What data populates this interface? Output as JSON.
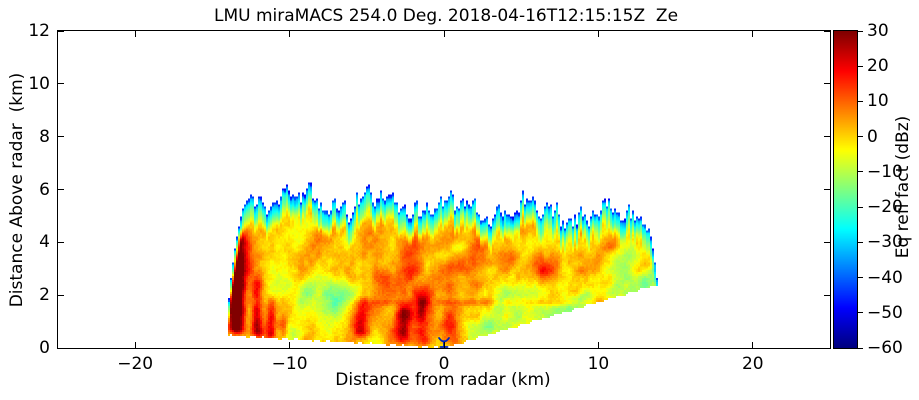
{
  "figure": {
    "title": "LMU miraMACS 254.0 Deg. 2018-04-16T12:15:15Z  Ze",
    "xlabel": "Distance from radar (km)",
    "ylabel": "Distance Above radar  (km)",
    "background_color": "#ffffff",
    "frame_color": "#000000"
  },
  "axes": {
    "x_ticks": [
      {
        "value": -20,
        "label": "−20"
      },
      {
        "value": -10,
        "label": "−10"
      },
      {
        "value": 0,
        "label": "0"
      },
      {
        "value": 10,
        "label": "10"
      },
      {
        "value": 20,
        "label": "20"
      }
    ],
    "y_ticks": [
      {
        "value": 0,
        "label": "0"
      },
      {
        "value": 2,
        "label": "2"
      },
      {
        "value": 4,
        "label": "4"
      },
      {
        "value": 6,
        "label": "6"
      },
      {
        "value": 8,
        "label": "8"
      },
      {
        "value": 10,
        "label": "10"
      },
      {
        "value": 12,
        "label": "12"
      }
    ]
  },
  "colorbar": {
    "label": "Eq refl fact (dBz)",
    "vmin": -60,
    "vmax": 30,
    "colormap": "jet",
    "ticks": [
      {
        "value": 30,
        "label": "30"
      },
      {
        "value": 20,
        "label": "20"
      },
      {
        "value": 10,
        "label": "10"
      },
      {
        "value": 0,
        "label": "0"
      },
      {
        "value": -10,
        "label": "−10"
      },
      {
        "value": -20,
        "label": "−20"
      },
      {
        "value": -30,
        "label": "−30"
      },
      {
        "value": -40,
        "label": "−40"
      },
      {
        "value": -50,
        "label": "−50"
      },
      {
        "value": -60,
        "label": "−60"
      }
    ]
  },
  "chart_data": {
    "type": "heatmap",
    "title": "LMU miraMACS 254.0 Deg. 2018-04-16T12:15:15Z  Ze",
    "xlabel": "Distance from radar (km)",
    "ylabel": "Distance Above radar  (km)",
    "colorbar_label": "Eq refl fact (dBz)",
    "colormap": "jet",
    "vmin": -60,
    "vmax": 30,
    "xlim": [
      -25,
      25
    ],
    "ylim": [
      0,
      12
    ],
    "x_ticks": [
      -20,
      -10,
      0,
      10,
      20
    ],
    "y_ticks": [
      0,
      2,
      4,
      6,
      8,
      10,
      12
    ],
    "colorbar_ticks": [
      30,
      20,
      10,
      0,
      -10,
      -20,
      -30,
      -40,
      -50,
      -60
    ],
    "description": "RHI cross-section of cloud-radar equivalent reflectivity factor: a precipitating cloud layer from ~0 to ~6 km height spanning −14 to +14 km horizontal range; cloud top jagged at 5–6 km with weak −30 to −45 dBz edges, interior mostly −10 to +10 dBz with fall streaks and columns up to ~+25 dBz near the left edge and below 2 km",
    "radar_marker": {
      "x_km": 0,
      "height_km": 0,
      "symbol": "antenna",
      "color": "#0022bb"
    },
    "scan": {
      "geometry": {
        "max_range_km": 14.05,
        "bottom_slope_left": -0.034,
        "bottom_slope_right": 0.173,
        "top_base_km": 5.35,
        "top_slope": -0.028,
        "top_fade_depth_km": 1.05
      },
      "features": {
        "base_dbz": 2.0,
        "lapse_per_km": -0.5,
        "noise_amp_db": 4.0,
        "top_edge_dbz": -38,
        "red_columns": [
          {
            "x": -13.4,
            "w": 0.5,
            "h0": 0.4,
            "h1": 4.6,
            "amp": 24
          },
          {
            "x": -12.1,
            "w": 0.38,
            "h0": 0.3,
            "h1": 3.0,
            "amp": 21
          },
          {
            "x": -11.2,
            "w": 0.3,
            "h0": 0.2,
            "h1": 2.1,
            "amp": 15
          },
          {
            "x": -10.4,
            "w": 0.28,
            "h0": 0.2,
            "h1": 1.4,
            "amp": 9
          },
          {
            "x": -5.4,
            "w": 0.5,
            "h0": 0.3,
            "h1": 2.0,
            "amp": 14
          },
          {
            "x": -2.6,
            "w": 0.5,
            "h0": 0.0,
            "h1": 1.9,
            "amp": 17
          },
          {
            "x": -1.4,
            "w": 0.45,
            "h0": 0.0,
            "h1": 2.4,
            "amp": 15
          },
          {
            "x": 0.4,
            "w": 0.5,
            "h0": 0.0,
            "h1": 1.8,
            "amp": 11
          },
          {
            "x": 9.9,
            "w": 0.55,
            "h0": 1.6,
            "h1": 3.6,
            "amp": 8
          }
        ],
        "edge_band": {
          "x_max": -9,
          "r_center": 13.6,
          "r_sigma": 0.55,
          "h0": 0.35,
          "h1": 4.9,
          "amp": 17
        },
        "blobs": [
          {
            "x": -8.2,
            "y": 1.9,
            "rx": 1.8,
            "ry": 0.95,
            "amp": -15
          },
          {
            "x": -6.1,
            "y": 1.8,
            "rx": 0.9,
            "ry": 0.55,
            "amp": -9
          },
          {
            "x": -9.9,
            "y": 0.5,
            "rx": 0.75,
            "ry": 0.5,
            "amp": -11
          },
          {
            "x": 4.0,
            "y": 1.9,
            "rx": 1.9,
            "ry": 0.85,
            "amp": -13
          },
          {
            "x": 2.6,
            "y": 0.8,
            "rx": 1.3,
            "ry": 0.55,
            "amp": -9
          },
          {
            "x": 6.9,
            "y": 0.9,
            "rx": 1.1,
            "ry": 0.7,
            "amp": -11
          },
          {
            "x": 12.1,
            "y": 2.9,
            "rx": 2.2,
            "ry": 0.8,
            "amp": -11
          },
          {
            "x": -0.2,
            "y": 4.0,
            "rx": 1.2,
            "ry": 0.8,
            "amp": -7
          },
          {
            "x": 8.4,
            "y": 1.7,
            "rx": 1.3,
            "ry": 0.6,
            "amp": -8
          },
          {
            "x": 10.5,
            "y": 2.3,
            "rx": 2.5,
            "ry": 1.3,
            "amp": -4
          },
          {
            "x": 0.5,
            "y": 3.1,
            "rx": 5.5,
            "ry": 1.3,
            "amp": 6
          },
          {
            "x": -1.5,
            "y": 1.0,
            "rx": 2.6,
            "ry": 1.0,
            "amp": 5
          }
        ],
        "bright_band": {
          "h": 1.72,
          "sigma": 0.14,
          "amp": 6.5,
          "x_start": -7,
          "fade_km": 3
        },
        "diag_streaks": [
          {
            "x0": -6,
            "y0": 2.6,
            "x1": 6,
            "y1": 3.5,
            "w": 0.4,
            "amp": 7
          },
          {
            "x0": -2,
            "y0": 2.1,
            "x1": 9,
            "y1": 2.9,
            "w": 0.32,
            "amp": 6
          },
          {
            "x0": 6.5,
            "y0": 3.0,
            "x1": 13,
            "y1": 4.3,
            "w": 0.38,
            "amp": 8
          },
          {
            "x0": 7,
            "y0": 1.9,
            "x1": 13.5,
            "y1": 3.1,
            "w": 0.3,
            "amp": 6
          },
          {
            "x0": -12.4,
            "y0": 3.1,
            "x1": -7.5,
            "y1": 4.5,
            "w": 0.45,
            "amp": 6
          },
          {
            "x0": -4,
            "y0": 3.8,
            "x1": 4,
            "y1": 4.4,
            "w": 0.45,
            "amp": 5
          }
        ],
        "bottom_green": {
          "x_min": 1.5,
          "depth": 0.45,
          "amp": -8
        }
      }
    }
  }
}
